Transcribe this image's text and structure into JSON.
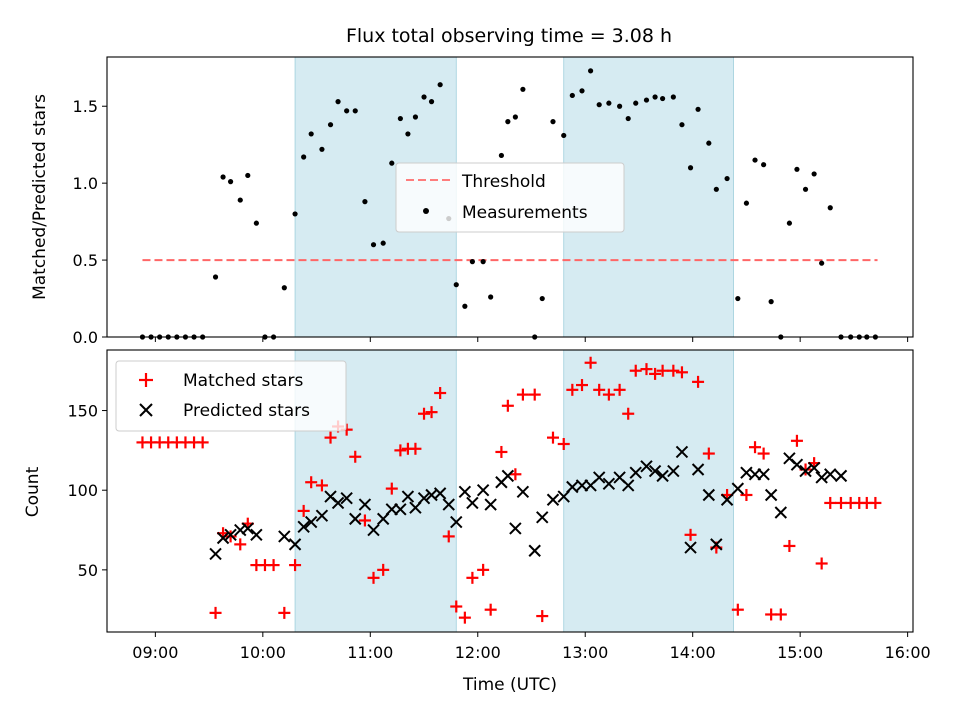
{
  "chart_data": [
    {
      "type": "scatter",
      "title": "Flux total observing time = 3.08 h",
      "xlabel": "",
      "ylabel": "Matched/Predicted stars",
      "ylim": [
        0,
        1.82
      ],
      "yticks": [
        0.0,
        0.5,
        1.0,
        1.5
      ],
      "ytick_labels": [
        "0.0",
        "0.5",
        "1.0",
        "1.5"
      ],
      "x_unit": "hours UTC",
      "xlim": [
        8.55,
        16.05
      ],
      "xticks": [
        9,
        10,
        11,
        12,
        13,
        14,
        15,
        16
      ],
      "legend_position": "center",
      "shaded_intervals": [
        [
          10.3,
          11.8
        ],
        [
          12.8,
          14.38
        ]
      ],
      "shade_color": "#add8e6",
      "threshold": {
        "name": "Threshold",
        "y": 0.5,
        "x_range": [
          8.88,
          15.72
        ],
        "color": "#ff6666"
      },
      "measurements": {
        "name": "Measurements",
        "color": "#000000",
        "x": [
          8.88,
          8.96,
          9.04,
          9.12,
          9.2,
          9.28,
          9.36,
          9.44,
          9.56,
          9.63,
          9.7,
          9.79,
          9.86,
          9.94,
          10.02,
          10.1,
          10.2,
          10.3,
          10.38,
          10.45,
          10.55,
          10.63,
          10.7,
          10.78,
          10.86,
          10.95,
          11.03,
          11.12,
          11.2,
          11.28,
          11.35,
          11.42,
          11.5,
          11.57,
          11.65,
          11.73,
          11.8,
          11.88,
          11.95,
          12.05,
          12.12,
          12.22,
          12.28,
          12.35,
          12.42,
          12.53,
          12.6,
          12.7,
          12.8,
          12.88,
          12.97,
          13.05,
          13.13,
          13.22,
          13.32,
          13.4,
          13.47,
          13.57,
          13.65,
          13.72,
          13.82,
          13.9,
          13.98,
          14.05,
          14.15,
          14.22,
          14.32,
          14.42,
          14.5,
          14.58,
          14.66,
          14.73,
          14.82,
          14.9,
          14.97,
          15.05,
          15.13,
          15.2,
          15.28,
          15.38,
          15.47,
          15.55,
          15.62,
          15.7
        ],
        "y": [
          0.0,
          0.0,
          0.0,
          0.0,
          0.0,
          0.0,
          0.0,
          0.0,
          0.39,
          1.04,
          1.01,
          0.89,
          1.05,
          0.74,
          0.0,
          0.0,
          0.32,
          0.8,
          1.17,
          1.32,
          1.22,
          1.38,
          1.53,
          1.47,
          1.47,
          0.88,
          0.6,
          0.61,
          1.13,
          1.42,
          1.32,
          1.43,
          1.56,
          1.53,
          1.64,
          0.77,
          0.34,
          0.2,
          0.49,
          0.49,
          0.26,
          1.18,
          1.4,
          1.43,
          1.61,
          0.0,
          0.25,
          1.4,
          1.31,
          1.57,
          1.6,
          1.73,
          1.51,
          1.52,
          1.5,
          1.42,
          1.52,
          1.54,
          1.56,
          1.55,
          1.56,
          1.38,
          1.1,
          1.48,
          1.26,
          0.96,
          1.03,
          0.25,
          0.87,
          1.15,
          1.12,
          0.23,
          0.0,
          0.74,
          1.09,
          0.96,
          1.06,
          0.48,
          0.84,
          0.0,
          0.0,
          0.0,
          0.0,
          0.0
        ]
      }
    },
    {
      "type": "scatter",
      "xlabel": "Time (UTC)",
      "ylabel": "Count",
      "ylim": [
        11,
        188
      ],
      "yticks": [
        50,
        100,
        150
      ],
      "xlim": [
        8.55,
        16.05
      ],
      "xticks": [
        9,
        10,
        11,
        12,
        13,
        14,
        15,
        16
      ],
      "xtick_labels": [
        "09:00",
        "10:00",
        "11:00",
        "12:00",
        "13:00",
        "14:00",
        "15:00",
        "16:00"
      ],
      "legend_position": "top-left",
      "shaded_intervals": [
        [
          10.3,
          11.8
        ],
        [
          12.8,
          14.38
        ]
      ],
      "matched": {
        "name": "Matched stars",
        "color": "#ff0000",
        "x": [
          8.88,
          8.96,
          9.04,
          9.12,
          9.2,
          9.28,
          9.36,
          9.44,
          9.56,
          9.63,
          9.7,
          9.79,
          9.86,
          9.94,
          10.02,
          10.1,
          10.2,
          10.3,
          10.38,
          10.45,
          10.55,
          10.63,
          10.7,
          10.78,
          10.86,
          10.95,
          11.03,
          11.12,
          11.2,
          11.28,
          11.35,
          11.42,
          11.5,
          11.57,
          11.65,
          11.73,
          11.8,
          11.88,
          11.95,
          12.05,
          12.12,
          12.22,
          12.28,
          12.35,
          12.42,
          12.53,
          12.6,
          12.7,
          12.8,
          12.88,
          12.97,
          13.05,
          13.13,
          13.22,
          13.32,
          13.4,
          13.47,
          13.57,
          13.65,
          13.72,
          13.82,
          13.9,
          13.98,
          14.05,
          14.15,
          14.22,
          14.32,
          14.42,
          14.5,
          14.58,
          14.66,
          14.73,
          14.82,
          14.9,
          14.97,
          15.05,
          15.13,
          15.2,
          15.28,
          15.38,
          15.47,
          15.55,
          15.62,
          15.7
        ],
        "y": [
          130,
          130,
          130,
          130,
          130,
          130,
          130,
          130,
          23,
          73,
          71,
          66,
          79,
          53,
          53,
          53,
          23,
          53,
          87,
          105,
          103,
          133,
          140,
          138,
          121,
          81,
          45,
          50,
          101,
          125,
          126,
          126,
          148,
          149,
          161,
          71,
          27,
          20,
          45,
          50,
          25,
          124,
          153,
          110,
          160,
          160,
          21,
          133,
          129,
          163,
          166,
          180,
          163,
          160,
          163,
          148,
          175,
          176,
          173,
          175,
          175,
          174,
          72,
          168,
          123,
          64,
          97,
          25,
          97,
          127,
          123,
          22,
          22,
          65,
          131,
          113,
          117,
          54,
          92,
          92,
          92,
          92,
          92,
          92
        ]
      },
      "predicted": {
        "name": "Predicted stars",
        "color": "#000000",
        "x": [
          9.56,
          9.63,
          9.7,
          9.79,
          9.86,
          9.94,
          10.2,
          10.3,
          10.38,
          10.45,
          10.55,
          10.63,
          10.7,
          10.78,
          10.86,
          10.95,
          11.03,
          11.12,
          11.2,
          11.28,
          11.35,
          11.42,
          11.5,
          11.57,
          11.65,
          11.73,
          11.8,
          11.88,
          11.95,
          12.05,
          12.12,
          12.22,
          12.28,
          12.35,
          12.42,
          12.53,
          12.6,
          12.7,
          12.8,
          12.88,
          12.97,
          13.05,
          13.13,
          13.22,
          13.32,
          13.4,
          13.47,
          13.57,
          13.65,
          13.72,
          13.82,
          13.9,
          13.98,
          14.05,
          14.15,
          14.22,
          14.32,
          14.42,
          14.5,
          14.58,
          14.66,
          14.73,
          14.82,
          14.9,
          14.97,
          15.05,
          15.13,
          15.2,
          15.28,
          15.38
        ],
        "y": [
          60,
          70,
          72,
          75,
          76,
          72,
          71,
          66,
          77,
          80,
          84,
          96,
          92,
          95,
          82,
          91,
          75,
          82,
          88,
          88,
          96,
          89,
          95,
          97,
          98,
          91,
          80,
          99,
          92,
          100,
          91,
          105,
          109,
          76,
          99,
          62,
          83,
          94,
          96,
          102,
          103,
          103,
          108,
          104,
          108,
          103,
          111,
          115,
          112,
          109,
          112,
          124,
          64,
          113,
          97,
          66,
          94,
          101,
          111,
          110,
          110,
          97,
          86,
          120,
          116,
          112,
          114,
          108,
          110,
          109
        ]
      }
    }
  ]
}
